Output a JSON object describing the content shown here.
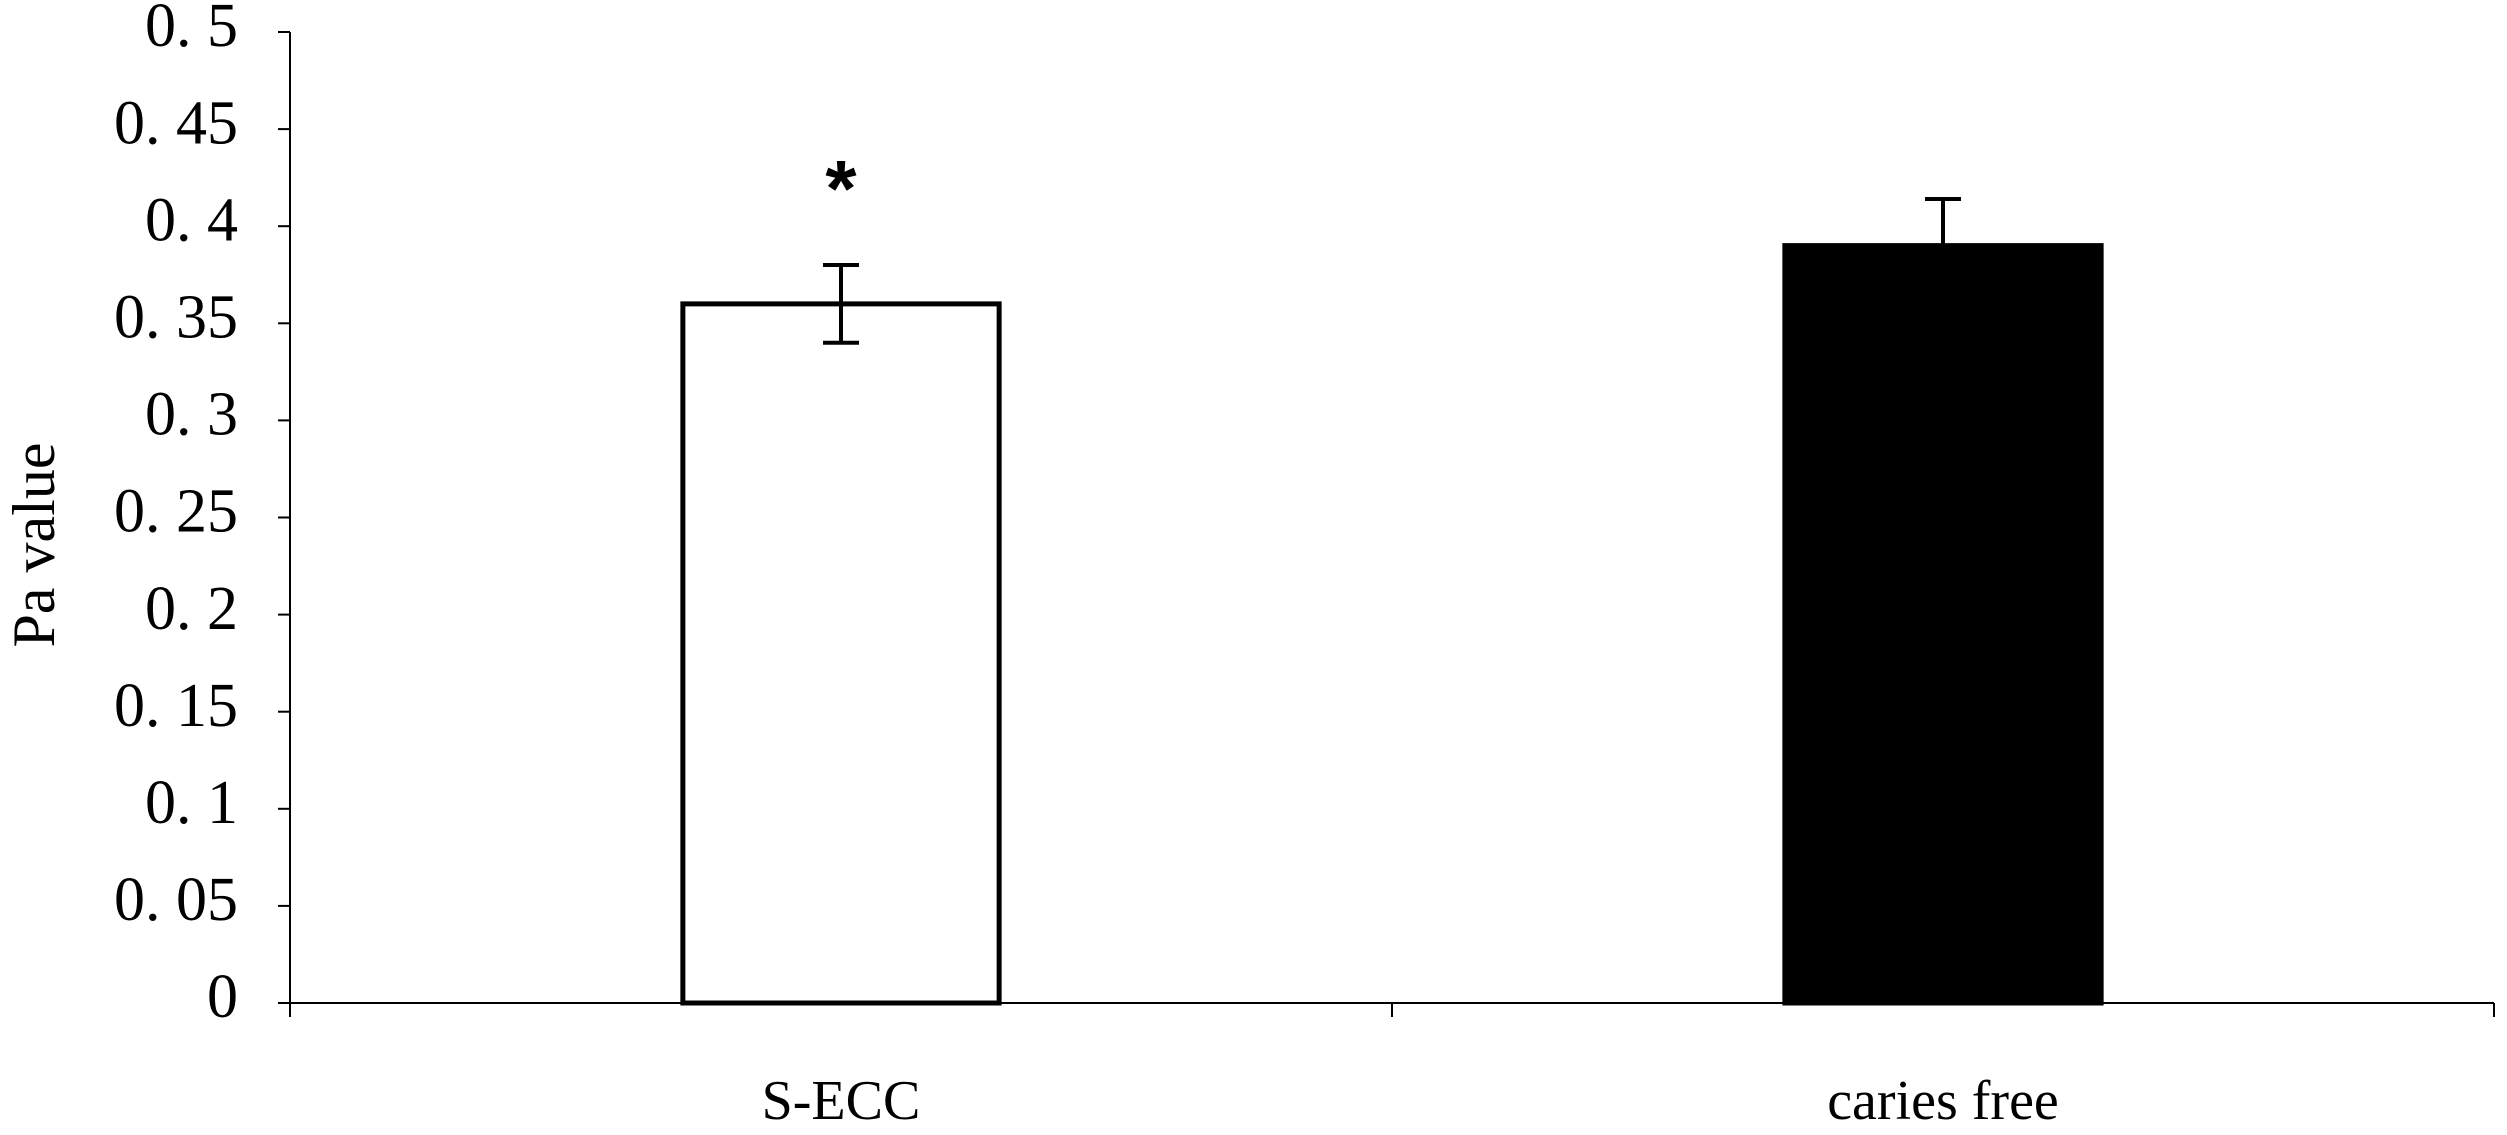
{
  "chart_data": {
    "type": "bar",
    "y_label": "Pa value",
    "categories": [
      "S-ECC",
      "caries free"
    ],
    "values": [
      0.36,
      0.39
    ],
    "errors": [
      0.02,
      0.024
    ],
    "value_annotations": [
      "*",
      null
    ],
    "colors": [
      "#ffffff",
      "#000000"
    ],
    "ylim": [
      0,
      0.5
    ],
    "yticks": [
      0,
      {
        "value": 0.05,
        "label": "0. 05"
      },
      {
        "value": 0.1,
        "label": "0. 1"
      },
      {
        "value": 0.15,
        "label": "0. 15"
      },
      {
        "value": 0.2,
        "label": "0. 2"
      },
      {
        "value": 0.25,
        "label": "0. 25"
      },
      {
        "value": 0.3,
        "label": "0. 3"
      },
      {
        "value": 0.35,
        "label": "0. 35"
      },
      {
        "value": 0.4,
        "label": "0. 4"
      },
      {
        "value": 0.45,
        "label": "0. 45"
      },
      {
        "value": 0.5,
        "label": "0. 5"
      }
    ],
    "grid": false
  }
}
